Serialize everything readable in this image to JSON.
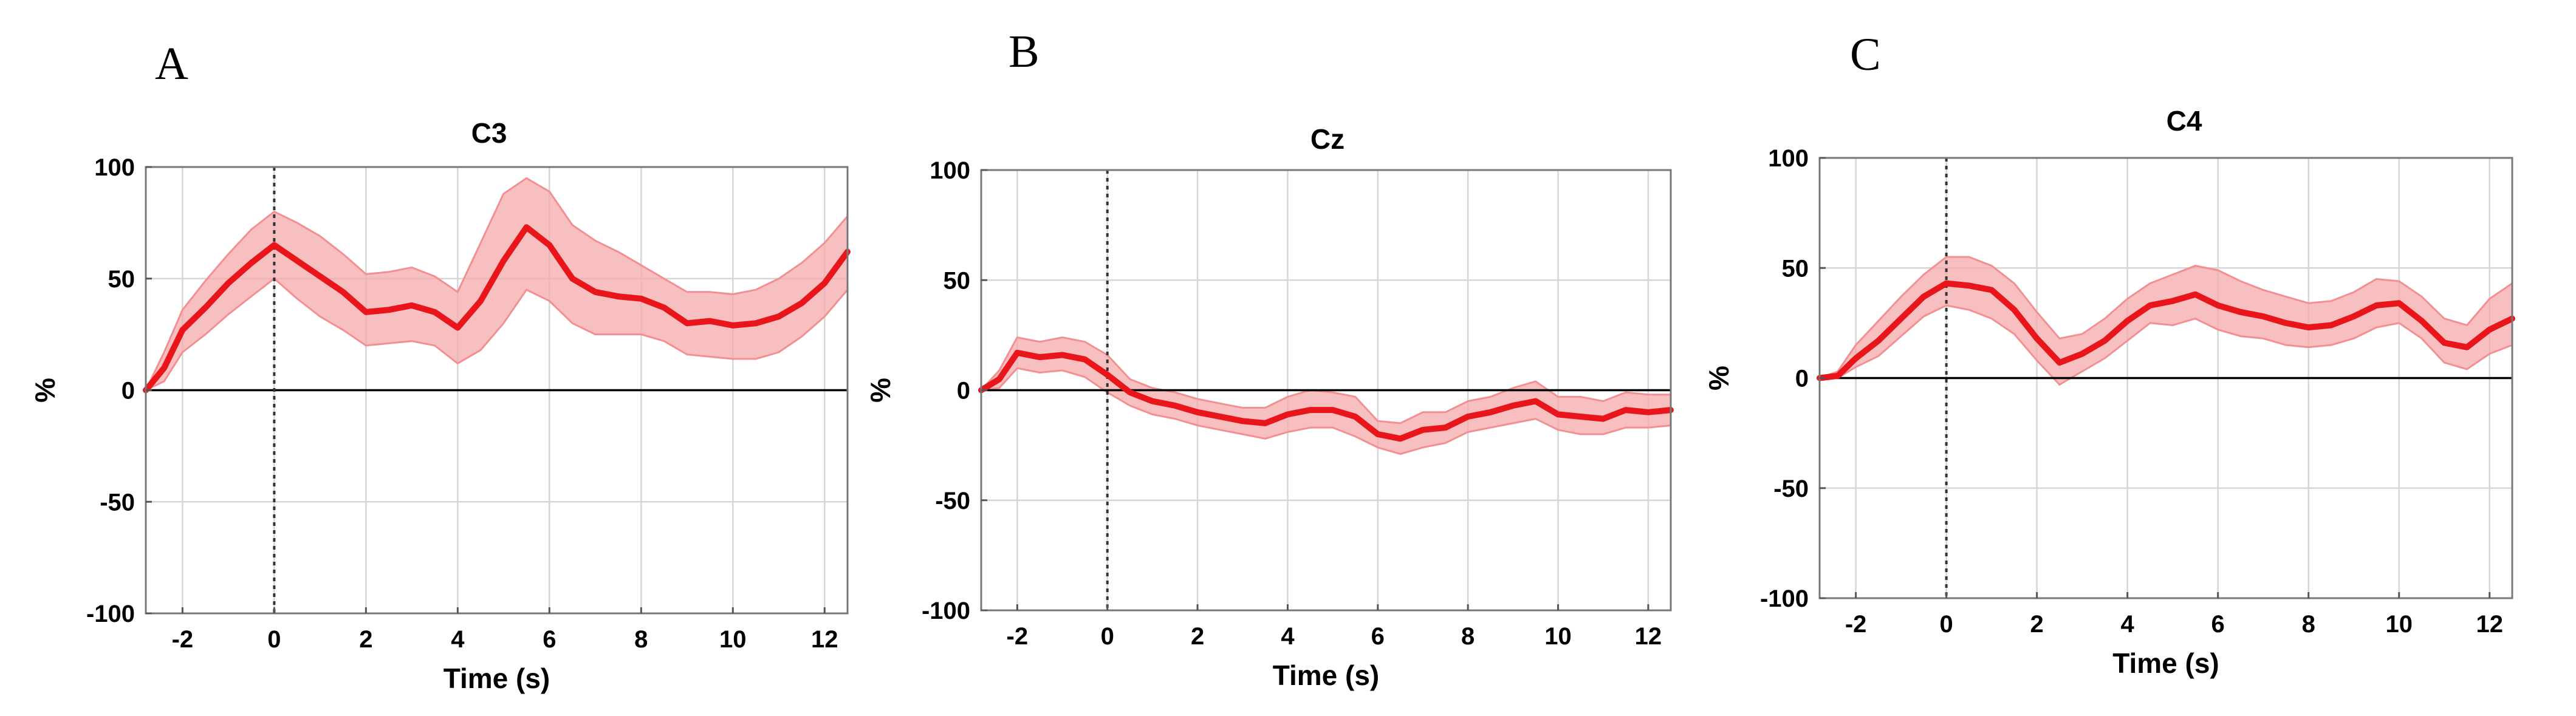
{
  "figure": {
    "panels": [
      "A",
      "B",
      "C"
    ]
  },
  "chart_data": [
    {
      "panel": "A",
      "type": "line",
      "title": "C3",
      "xlabel": "Time (s)",
      "ylabel": "%",
      "xlim": [
        -2.8,
        12.5
      ],
      "ylim": [
        -100,
        100
      ],
      "x_ticks": [
        -2,
        0,
        2,
        4,
        6,
        8,
        10,
        12
      ],
      "y_ticks": [
        -100,
        -50,
        0,
        50,
        100
      ],
      "grid": true,
      "onset_marker_x": 0,
      "colors": {
        "line": "#e8161b",
        "band": "#f4a9ab",
        "band_edge": "#f28f92"
      },
      "series": [
        {
          "name": "mean",
          "x": [
            -2.8,
            -2.4,
            -2,
            -1.5,
            -1,
            -0.5,
            0,
            0.5,
            1,
            1.5,
            2,
            2.5,
            3,
            3.5,
            4,
            4.5,
            5,
            5.5,
            6,
            6.5,
            7,
            7.5,
            8,
            8.5,
            9,
            9.5,
            10,
            10.5,
            11,
            11.5,
            12,
            12.5
          ],
          "y": [
            0,
            10,
            27,
            37,
            48,
            57,
            65,
            58,
            51,
            44,
            35,
            36,
            38,
            35,
            28,
            40,
            58,
            73,
            65,
            50,
            44,
            42,
            41,
            37,
            30,
            31,
            29,
            30,
            33,
            39,
            48,
            62
          ],
          "upper": [
            0,
            17,
            36,
            49,
            61,
            72,
            80,
            75,
            69,
            61,
            52,
            53,
            55,
            51,
            44,
            66,
            88,
            95,
            89,
            74,
            67,
            62,
            56,
            50,
            44,
            44,
            43,
            45,
            50,
            57,
            66,
            78
          ],
          "lower": [
            0,
            4,
            17,
            25,
            34,
            42,
            50,
            41,
            33,
            27,
            20,
            21,
            22,
            20,
            12,
            18,
            30,
            45,
            40,
            30,
            25,
            25,
            25,
            22,
            16,
            15,
            14,
            14,
            17,
            24,
            33,
            45
          ]
        }
      ]
    },
    {
      "panel": "B",
      "type": "line",
      "title": "Cz",
      "xlabel": "Time (s)",
      "ylabel": "%",
      "xlim": [
        -2.8,
        12.5
      ],
      "ylim": [
        -100,
        100
      ],
      "x_ticks": [
        -2,
        0,
        2,
        4,
        6,
        8,
        10,
        12
      ],
      "y_ticks": [
        -100,
        -50,
        0,
        50,
        100
      ],
      "grid": true,
      "onset_marker_x": 0,
      "colors": {
        "line": "#e8161b",
        "band": "#f4a9ab",
        "band_edge": "#f28f92"
      },
      "series": [
        {
          "name": "mean",
          "x": [
            -2.8,
            -2.4,
            -2,
            -1.5,
            -1,
            -0.5,
            0,
            0.5,
            1,
            1.5,
            2,
            2.5,
            3,
            3.5,
            4,
            4.5,
            5,
            5.5,
            6,
            6.5,
            7,
            7.5,
            8,
            8.5,
            9,
            9.5,
            10,
            10.5,
            11,
            11.5,
            12,
            12.5
          ],
          "y": [
            0,
            5,
            17,
            15,
            16,
            14,
            7,
            -1,
            -5,
            -7,
            -10,
            -12,
            -14,
            -15,
            -11,
            -9,
            -9,
            -12,
            -20,
            -22,
            -18,
            -17,
            -12,
            -10,
            -7,
            -5,
            -11,
            -12,
            -13,
            -9,
            -10,
            -9
          ],
          "upper": [
            0,
            9,
            24,
            22,
            24,
            22,
            16,
            5,
            1,
            -1,
            -4,
            -6,
            -8,
            -8,
            -3,
            0,
            -1,
            -3,
            -14,
            -15,
            -10,
            -10,
            -5,
            -3,
            1,
            4,
            -3,
            -3,
            -5,
            -1,
            -2,
            -2
          ],
          "lower": [
            0,
            1,
            10,
            8,
            9,
            6,
            -1,
            -7,
            -11,
            -13,
            -16,
            -18,
            -20,
            -22,
            -19,
            -17,
            -17,
            -21,
            -26,
            -29,
            -26,
            -24,
            -19,
            -17,
            -15,
            -13,
            -18,
            -20,
            -20,
            -17,
            -17,
            -16
          ]
        }
      ]
    },
    {
      "panel": "C",
      "type": "line",
      "title": "C4",
      "xlabel": "Time (s)",
      "ylabel": "%",
      "xlim": [
        -2.8,
        12.5
      ],
      "ylim": [
        -100,
        100
      ],
      "x_ticks": [
        -2,
        0,
        2,
        4,
        6,
        8,
        10,
        12
      ],
      "y_ticks": [
        -100,
        -50,
        0,
        50,
        100
      ],
      "grid": true,
      "onset_marker_x": 0,
      "colors": {
        "line": "#e8161b",
        "band": "#f4a9ab",
        "band_edge": "#f28f92"
      },
      "series": [
        {
          "name": "mean",
          "x": [
            -2.8,
            -2.4,
            -2,
            -1.5,
            -1,
            -0.5,
            0,
            0.5,
            1,
            1.5,
            2,
            2.5,
            3,
            3.5,
            4,
            4.5,
            5,
            5.5,
            6,
            6.5,
            7,
            7.5,
            8,
            8.5,
            9,
            9.5,
            10,
            10.5,
            11,
            11.5,
            12,
            12.5
          ],
          "y": [
            0,
            1,
            9,
            17,
            27,
            37,
            43,
            42,
            40,
            31,
            18,
            7,
            11,
            17,
            26,
            33,
            35,
            38,
            33,
            30,
            28,
            25,
            23,
            24,
            28,
            33,
            34,
            26,
            16,
            14,
            22,
            27
          ],
          "upper": [
            0,
            3,
            15,
            26,
            37,
            47,
            55,
            55,
            51,
            43,
            30,
            18,
            20,
            27,
            36,
            43,
            47,
            51,
            49,
            44,
            40,
            37,
            34,
            35,
            39,
            45,
            44,
            37,
            27,
            24,
            36,
            43
          ],
          "lower": [
            0,
            0,
            5,
            10,
            19,
            28,
            33,
            31,
            27,
            20,
            8,
            -3,
            3,
            9,
            17,
            25,
            24,
            27,
            22,
            19,
            18,
            15,
            14,
            15,
            18,
            23,
            25,
            18,
            7,
            4,
            11,
            15
          ]
        }
      ]
    }
  ]
}
